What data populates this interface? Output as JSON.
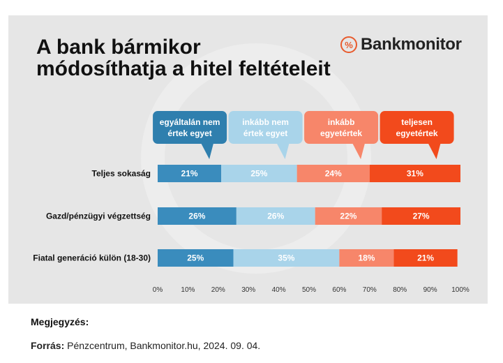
{
  "title_line1": "A bank bármikor",
  "title_line2": "módosíthatja a hitel feltételeit",
  "brand": {
    "name": "Bankmonitor",
    "logo_symbol": "%",
    "logo_color": "#e85a2c"
  },
  "note_label": "Megjegyzés:",
  "source_label": "Forrás:",
  "source_text": "Pénzcentrum, Bankmonitor.hu, 2024. 09. 04.",
  "chart_data": {
    "type": "bar",
    "orientation": "horizontal-stacked-100",
    "categories": [
      "Teljes sokaság",
      "Gazd/pénzügyi végzettség",
      "Fiatal generáció külön (18-30)"
    ],
    "series": [
      {
        "name": "egyáltalán nem\nértek egyet",
        "values": [
          21,
          26,
          25
        ],
        "color": "#3a8cbd",
        "callout_color": "#2f7fae"
      },
      {
        "name": "inkább nem\nértek egyet",
        "values": [
          25,
          26,
          35
        ],
        "color": "#a9d4ea",
        "callout_color": "#a9d4ea"
      },
      {
        "name": "inkább\negyetértek",
        "values": [
          24,
          22,
          18
        ],
        "color": "#f7866a",
        "callout_color": "#f7866a"
      },
      {
        "name": "teljesen\negyetértek",
        "values": [
          31,
          27,
          21
        ],
        "color": "#f24a1c",
        "callout_color": "#f24a1c"
      }
    ],
    "value_suffix": "%",
    "xlim": [
      0,
      100
    ],
    "xticks": [
      "0%",
      "10%",
      "20%",
      "30%",
      "40%",
      "50%",
      "60%",
      "70%",
      "80%",
      "90%",
      "100%"
    ],
    "grid": false,
    "legend": "top, as callout bubbles"
  }
}
